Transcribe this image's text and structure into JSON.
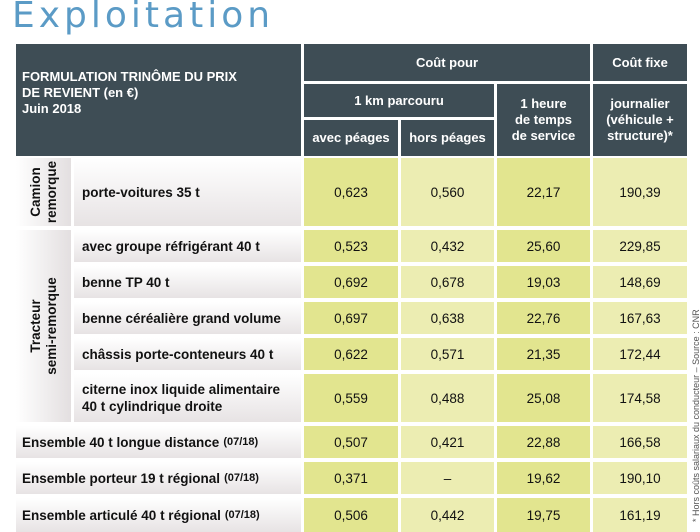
{
  "title": "Exploitation",
  "side_note": "* Hors coûts salariaux du conducteur  –  Source : CNR",
  "header": {
    "formula": [
      "FORMULATION TRINÔME DU PRIX",
      "DE REVIENT (en €)",
      "Juin 2018"
    ],
    "cout_pour": "Coût pour",
    "cout_fixe": "Coût fixe",
    "km": "1 km parcouru",
    "heure": [
      "1 heure",
      "de temps",
      "de service"
    ],
    "journalier": [
      "journalier",
      "(véhicule +",
      "structure)*"
    ],
    "avec_peages": "avec péages",
    "hors_peages": "hors péages"
  },
  "categories": {
    "camion": [
      "Camion",
      "remorque"
    ],
    "tracteur": [
      "Tracteur",
      "semi-remorque"
    ]
  },
  "rows": [
    {
      "label": [
        "porte-voitures 35 t"
      ],
      "tag": "",
      "avec": "0,623",
      "hors": "0,560",
      "heure": "22,17",
      "fixe": "190,39"
    },
    {
      "label": [
        "avec groupe réfrigérant 40 t"
      ],
      "tag": "",
      "avec": "0,523",
      "hors": "0,432",
      "heure": "25,60",
      "fixe": "229,85"
    },
    {
      "label": [
        "benne TP 40 t"
      ],
      "tag": "",
      "avec": "0,692",
      "hors": "0,678",
      "heure": "19,03",
      "fixe": "148,69"
    },
    {
      "label": [
        "benne céréalière grand volume"
      ],
      "tag": "",
      "avec": "0,697",
      "hors": "0,638",
      "heure": "22,76",
      "fixe": "167,63"
    },
    {
      "label": [
        "châssis porte-conteneurs 40 t"
      ],
      "tag": "",
      "avec": "0,622",
      "hors": "0,571",
      "heure": "21,35",
      "fixe": "172,44"
    },
    {
      "label": [
        "citerne inox liquide alimentaire",
        "40 t cylindrique droite"
      ],
      "tag": "",
      "avec": "0,559",
      "hors": "0,488",
      "heure": "25,08",
      "fixe": "174,58"
    },
    {
      "label": [
        "Ensemble 40 t longue distance"
      ],
      "tag": "(07/18)",
      "avec": "0,507",
      "hors": "0,421",
      "heure": "22,88",
      "fixe": "166,58"
    },
    {
      "label": [
        "Ensemble porteur 19 t régional"
      ],
      "tag": "(07/18)",
      "avec": "0,371",
      "hors": "–",
      "heure": "19,62",
      "fixe": "190,10"
    },
    {
      "label": [
        "Ensemble articulé 40 t régional"
      ],
      "tag": "(07/18)",
      "avec": "0,506",
      "hors": "0,442",
      "heure": "19,75",
      "fixe": "161,19"
    }
  ]
}
